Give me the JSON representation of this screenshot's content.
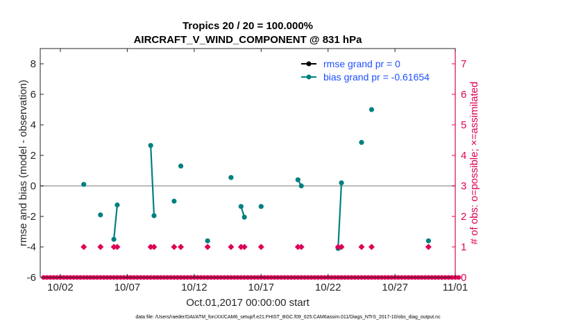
{
  "chart_data": {
    "type": "line",
    "title": "Tropics 20 / 20 = 100.000%",
    "subtitle": "AIRCRAFT_V_WIND_COMPONENT @ 831 hPa",
    "ylabel": "rmse and bias (model - observation)",
    "ylabel_right": "# of obs: o=possible; ×=assimilated",
    "xlabel": "Oct.01,2017 00:00:00 start",
    "footnote": "data file: /Users/raeder/DAI/ATM_forcXX/CAM6_setup/f.e21.FHIST_BGC.f09_025.CAM6assim.011/Diags_NTrS_2017-10/obs_diag_output.nc",
    "xlim": [
      0.5,
      31.5
    ],
    "ylim": [
      -6,
      9
    ],
    "ylim_right": [
      0,
      7.5
    ],
    "x_ticks": [
      {
        "x": 2,
        "label": "10/02"
      },
      {
        "x": 7,
        "label": "10/07"
      },
      {
        "x": 12,
        "label": "10/12"
      },
      {
        "x": 17,
        "label": "10/17"
      },
      {
        "x": 22,
        "label": "10/22"
      },
      {
        "x": 27,
        "label": "10/27"
      },
      {
        "x": 32,
        "label": "11/01"
      }
    ],
    "y_ticks": [
      {
        "v": -6,
        "label": "-6"
      },
      {
        "v": -4,
        "label": "-4"
      },
      {
        "v": -2,
        "label": "-2"
      },
      {
        "v": 0,
        "label": "0"
      },
      {
        "v": 2,
        "label": "2"
      },
      {
        "v": 4,
        "label": "4"
      },
      {
        "v": 6,
        "label": "6"
      },
      {
        "v": 8,
        "label": "8"
      }
    ],
    "y_ticks_right": [
      {
        "v": 0,
        "label": "0"
      },
      {
        "v": 1,
        "label": "1"
      },
      {
        "v": 2,
        "label": "2"
      },
      {
        "v": 3,
        "label": "3"
      },
      {
        "v": 4,
        "label": "4"
      },
      {
        "v": 5,
        "label": "5"
      },
      {
        "v": 6,
        "label": "6"
      },
      {
        "v": 7,
        "label": "7"
      }
    ],
    "zero_line": 0,
    "legend": {
      "position": "top-right",
      "entries": [
        {
          "name": "rmse grand pr = 0",
          "color": "#000000"
        },
        {
          "name": "bias grand pr = -0.61654",
          "color": "#008080"
        }
      ]
    },
    "series": [
      {
        "name": "bias",
        "axis": "left",
        "color": "#008080",
        "segments": [
          [
            [
              3.75,
              0.1
            ]
          ],
          [
            [
              5.0,
              -1.9
            ]
          ],
          [
            [
              6.0,
              -3.5
            ],
            [
              6.25,
              -1.25
            ]
          ],
          [
            [
              8.75,
              2.65
            ],
            [
              9.0,
              -1.95
            ]
          ],
          [
            [
              10.5,
              -1.0
            ]
          ],
          [
            [
              11.0,
              1.3
            ]
          ],
          [
            [
              13.0,
              -3.6
            ]
          ],
          [
            [
              14.75,
              0.55
            ]
          ],
          [
            [
              15.5,
              -1.35
            ],
            [
              15.75,
              -2.05
            ]
          ],
          [
            [
              17.0,
              -1.35
            ]
          ],
          [
            [
              19.75,
              0.4
            ],
            [
              20.0,
              0.0
            ]
          ],
          [
            [
              22.75,
              -4.1
            ],
            [
              23.0,
              0.2
            ]
          ],
          [
            [
              24.5,
              2.85
            ]
          ],
          [
            [
              25.25,
              5.0
            ]
          ],
          [
            [
              29.5,
              -3.6
            ]
          ]
        ]
      },
      {
        "name": "obs_possible",
        "axis": "right",
        "color": "#dd0055",
        "marker": "circle",
        "x_start": 0.75,
        "x_step": 0.25,
        "count": 125,
        "value": 0
      },
      {
        "name": "obs_assimilated",
        "axis": "right",
        "color": "#dd0055",
        "marker": "x",
        "x": [
          3.75,
          5.0,
          6.0,
          6.25,
          8.75,
          9.0,
          10.5,
          11.0,
          13.0,
          14.75,
          15.5,
          15.75,
          17.0,
          19.75,
          20.0,
          22.75,
          23.0,
          24.5,
          25.25,
          29.5
        ],
        "value": 1
      }
    ]
  }
}
